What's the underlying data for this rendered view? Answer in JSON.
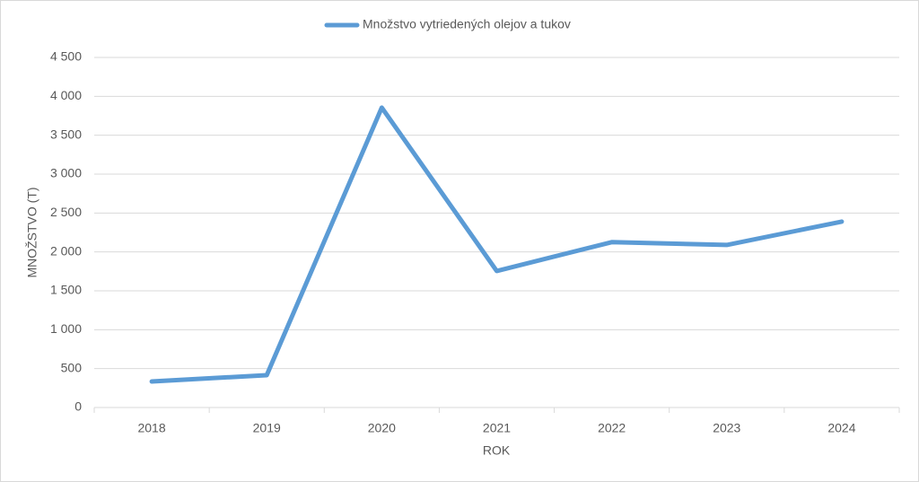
{
  "chart_data": {
    "type": "line",
    "categories": [
      "2018",
      "2019",
      "2020",
      "2021",
      "2022",
      "2023",
      "2024"
    ],
    "series": [
      {
        "name": "Množstvo vytriedených olejov a tukov",
        "color": "#5b9bd5",
        "values": [
          335,
          415,
          3855,
          1755,
          2125,
          2090,
          2390
        ]
      }
    ],
    "xlabel": "ROK",
    "ylabel": "MNOŽSTVO (T)",
    "ylim": [
      0,
      4500
    ],
    "yticks": [
      0,
      500,
      {
        "value": 1000,
        "label": "1 000"
      },
      {
        "value": 1500,
        "label": "1 500"
      },
      {
        "value": 2000,
        "label": "2 000"
      },
      {
        "value": 2500,
        "label": "2 500"
      },
      {
        "value": 3000,
        "label": "3 000"
      },
      {
        "value": 3500,
        "label": "3 500"
      },
      {
        "value": 4000,
        "label": "4 000"
      },
      {
        "value": 4500,
        "label": "4 500"
      }
    ],
    "grid": true,
    "legend": "top"
  }
}
